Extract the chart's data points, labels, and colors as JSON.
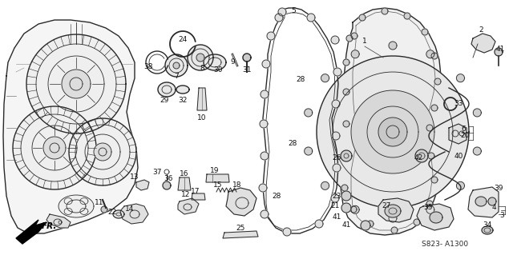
{
  "background_color": "#ffffff",
  "diagram_code": "S823- A1300",
  "fr_label": "FR.",
  "fig_width": 6.4,
  "fig_height": 3.19,
  "dpi": 100,
  "label_fontsize": 6.5,
  "code_fontsize": 6.5
}
